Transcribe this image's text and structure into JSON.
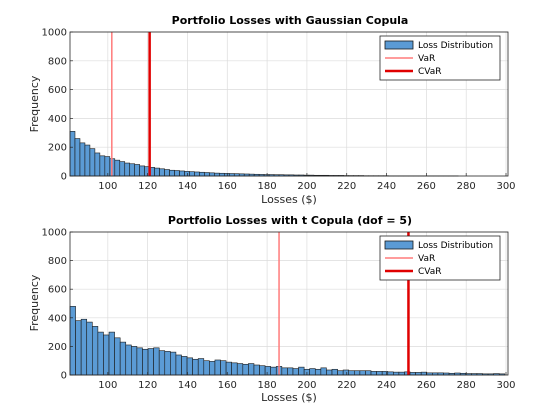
{
  "chart_data": [
    {
      "type": "histogram",
      "title": "Portfolio Losses with Gaussian Copula",
      "xlabel": "Losses ($)",
      "ylabel": "Frequency",
      "xlim": [
        81,
        301
      ],
      "ylim": [
        0,
        1000
      ],
      "xticks": [
        100,
        120,
        140,
        160,
        180,
        200,
        220,
        240,
        260,
        280,
        300
      ],
      "yticks": [
        0,
        200,
        400,
        600,
        800,
        1000
      ],
      "grid": true,
      "legend": {
        "placement": "top-right",
        "entries": [
          "Loss Distribution",
          "VaR",
          "CVaR"
        ]
      },
      "bin_start": 81,
      "bin_width": 2.5,
      "values": [
        310,
        260,
        230,
        215,
        190,
        160,
        140,
        135,
        120,
        110,
        100,
        90,
        85,
        80,
        70,
        65,
        60,
        55,
        50,
        45,
        40,
        38,
        35,
        32,
        30,
        28,
        26,
        24,
        22,
        20,
        19,
        18,
        17,
        16,
        15,
        14,
        13,
        12,
        11,
        10,
        10,
        9,
        9,
        8,
        8,
        7,
        7,
        6,
        6,
        5,
        5,
        5,
        4,
        4,
        4,
        3,
        3,
        3,
        3,
        2,
        2,
        2,
        2,
        2,
        1,
        1,
        1,
        1,
        1,
        1,
        1,
        1,
        1,
        1,
        1,
        1,
        1,
        1
      ],
      "var": 102,
      "cvar": 121,
      "colors": {
        "bar": "#5b9bd5",
        "bar_edge": "#1a1a1a",
        "var": "#ff7b7b",
        "cvar": "#e00000"
      }
    },
    {
      "type": "histogram",
      "title": "Portfolio Losses with t Copula (dof = 5)",
      "xlabel": "Losses ($)",
      "ylabel": "Frequency",
      "xlim": [
        81,
        301
      ],
      "ylim": [
        0,
        1000
      ],
      "xticks": [
        100,
        120,
        140,
        160,
        180,
        200,
        220,
        240,
        260,
        280,
        300
      ],
      "yticks": [
        0,
        200,
        400,
        600,
        800,
        1000
      ],
      "grid": true,
      "legend": {
        "placement": "top-right",
        "entries": [
          "Loss Distribution",
          "VaR",
          "CVaR"
        ]
      },
      "bin_start": 81,
      "bin_width": 2.8,
      "values": [
        480,
        380,
        390,
        370,
        340,
        300,
        280,
        300,
        260,
        230,
        210,
        200,
        190,
        180,
        185,
        190,
        170,
        165,
        160,
        140,
        130,
        120,
        110,
        115,
        100,
        95,
        105,
        100,
        90,
        85,
        80,
        75,
        80,
        70,
        65,
        60,
        55,
        60,
        50,
        50,
        45,
        55,
        40,
        45,
        40,
        50,
        35,
        40,
        30,
        35,
        30,
        30,
        30,
        30,
        25,
        25,
        25,
        22,
        20,
        20,
        22,
        18,
        18,
        20,
        15,
        15,
        15,
        14,
        12,
        14,
        12,
        10,
        10,
        10,
        8,
        8,
        10,
        8
      ],
      "var": 186,
      "cvar": 251,
      "colors": {
        "bar": "#5b9bd5",
        "bar_edge": "#1a1a1a",
        "var": "#ff7b7b",
        "cvar": "#e00000"
      }
    }
  ]
}
